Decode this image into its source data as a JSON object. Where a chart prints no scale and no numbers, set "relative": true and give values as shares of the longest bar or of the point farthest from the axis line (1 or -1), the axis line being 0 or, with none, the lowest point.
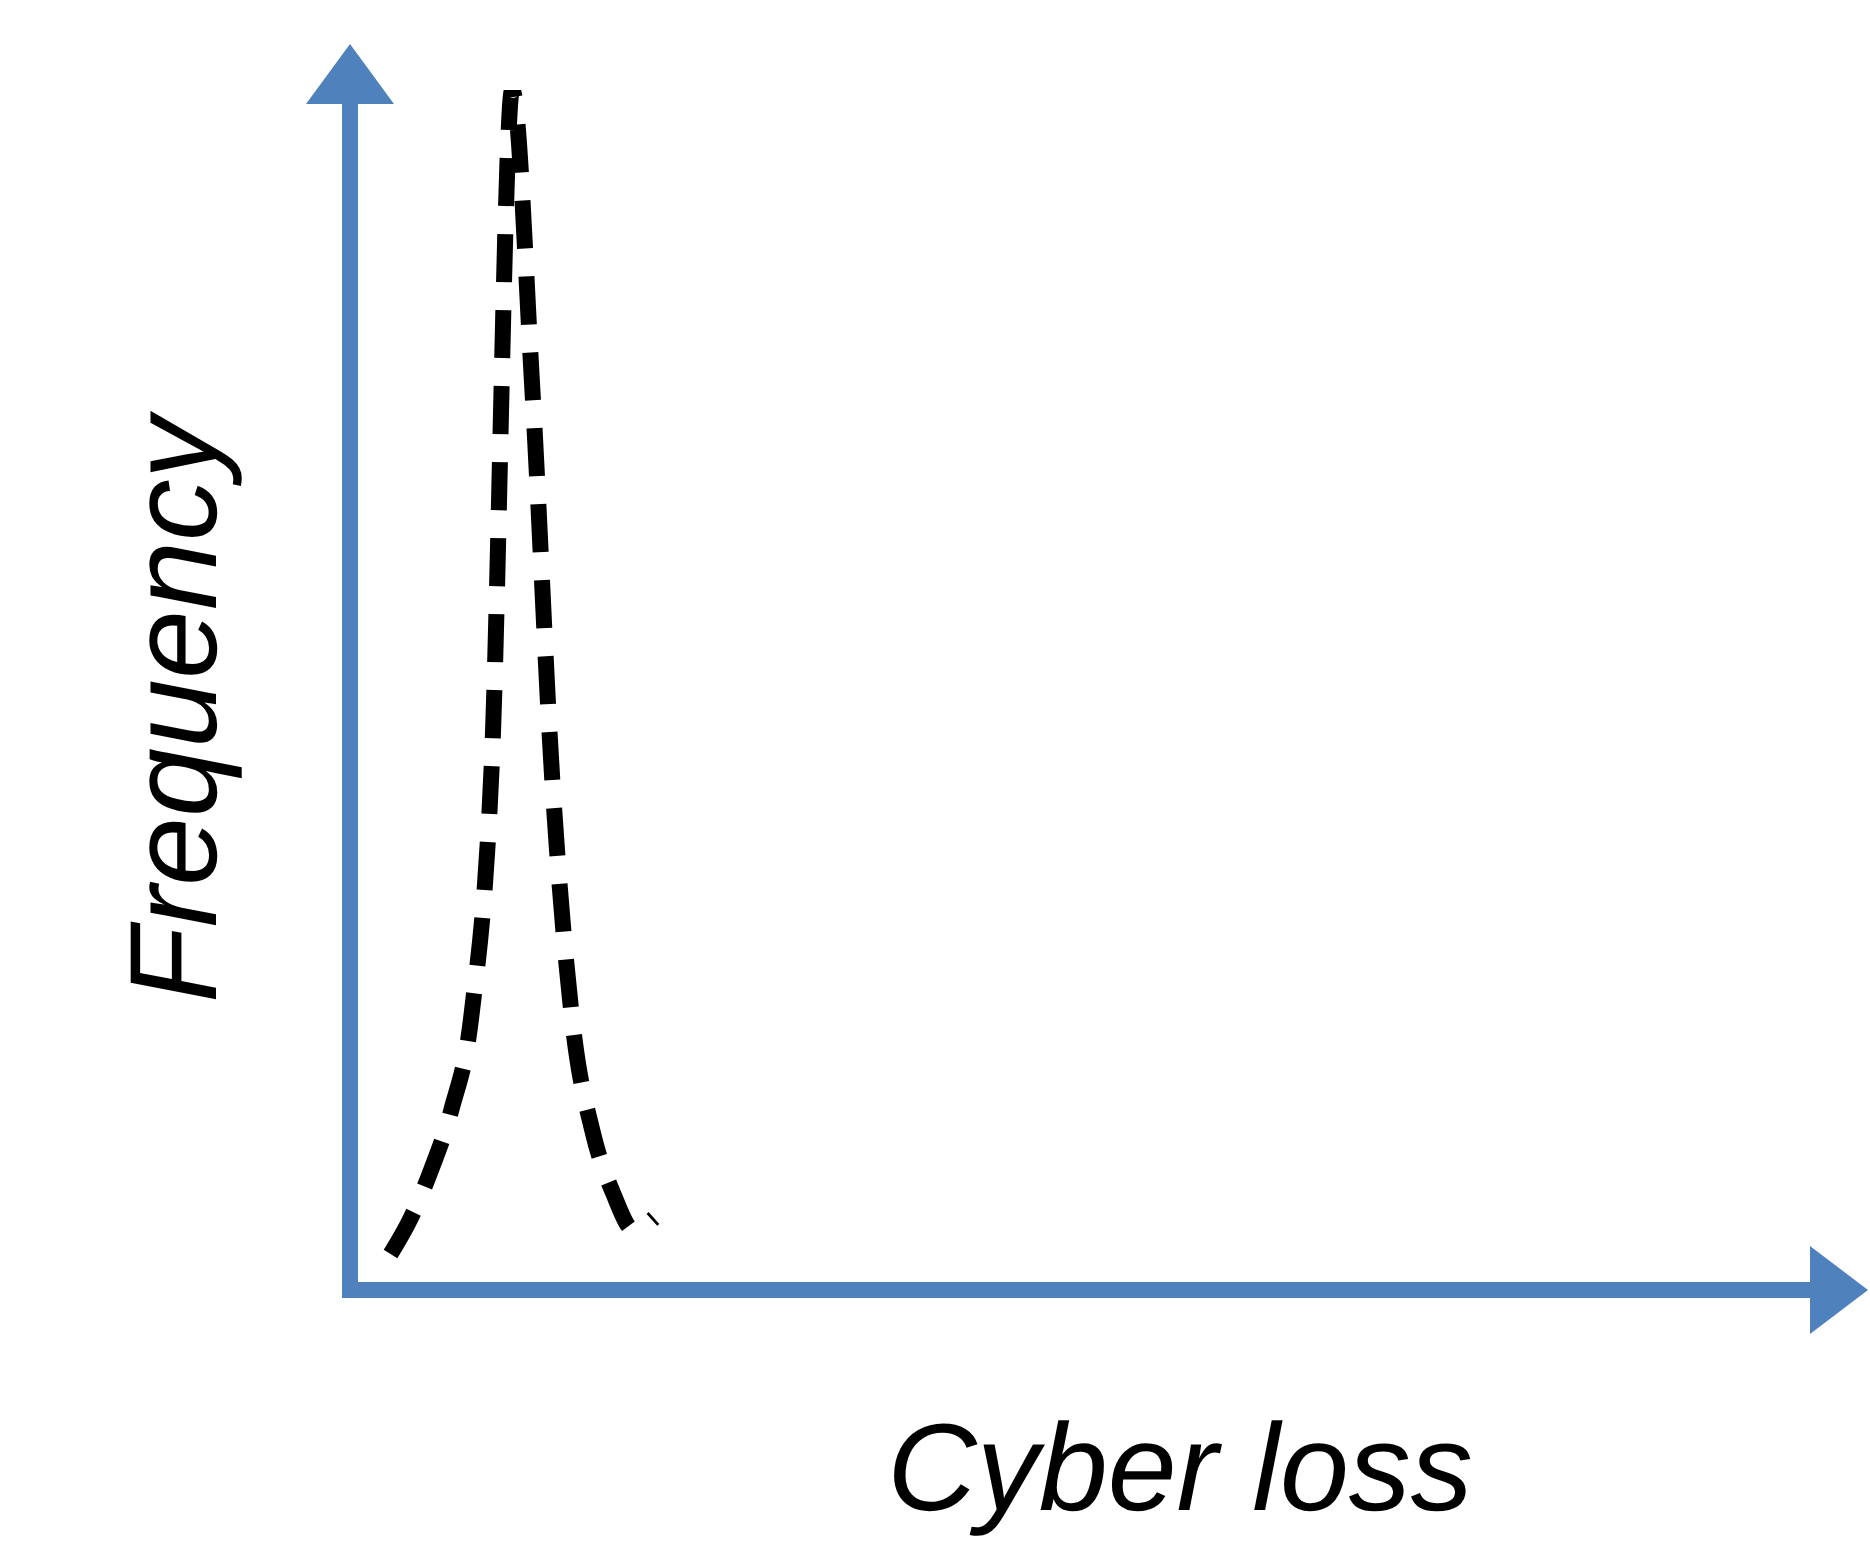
{
  "chart_data": {
    "type": "line",
    "relative": true,
    "xlabel": "Cyber loss",
    "ylabel": "Frequency",
    "line_style": "dashed",
    "marker": "none",
    "categories": [
      null,
      null,
      null,
      null,
      null,
      null,
      null,
      null,
      null,
      null,
      null,
      null,
      null,
      null,
      null,
      null,
      null,
      null,
      null,
      null,
      null,
      null,
      null,
      null,
      null,
      null,
      null,
      null,
      null,
      null,
      null,
      null,
      null,
      null,
      null,
      null,
      null,
      null,
      null,
      null,
      null,
      null,
      null,
      null,
      null,
      null,
      null,
      null,
      null,
      null,
      null,
      null,
      null,
      null,
      null,
      null,
      null,
      null,
      null,
      null,
      null,
      null,
      null,
      null,
      null,
      null,
      null,
      null,
      null,
      null,
      null,
      null,
      null,
      null,
      null,
      null
    ],
    "series": [
      {
        "color": "#000000",
        "values": [
          null,
          null,
          0.03,
          0.06,
          0.1,
          0.15,
          0.23,
          0.44,
          1.0,
          0.75,
          0.42,
          0.22,
          0.13,
          0.08,
          0.05,
          0.06,
          null,
          null,
          null,
          null,
          null,
          null,
          null,
          null,
          null,
          null,
          null,
          null,
          null,
          null,
          null,
          null,
          null,
          null,
          null,
          null,
          null,
          null,
          null,
          null,
          null,
          null,
          null,
          null,
          null,
          null,
          null,
          null,
          null,
          null,
          null,
          null,
          null,
          null,
          null,
          null,
          null,
          null,
          null,
          null,
          null,
          null,
          null,
          null,
          null,
          null,
          null,
          null,
          null,
          null,
          null,
          null,
          null,
          null,
          null,
          null
        ]
      }
    ]
  }
}
